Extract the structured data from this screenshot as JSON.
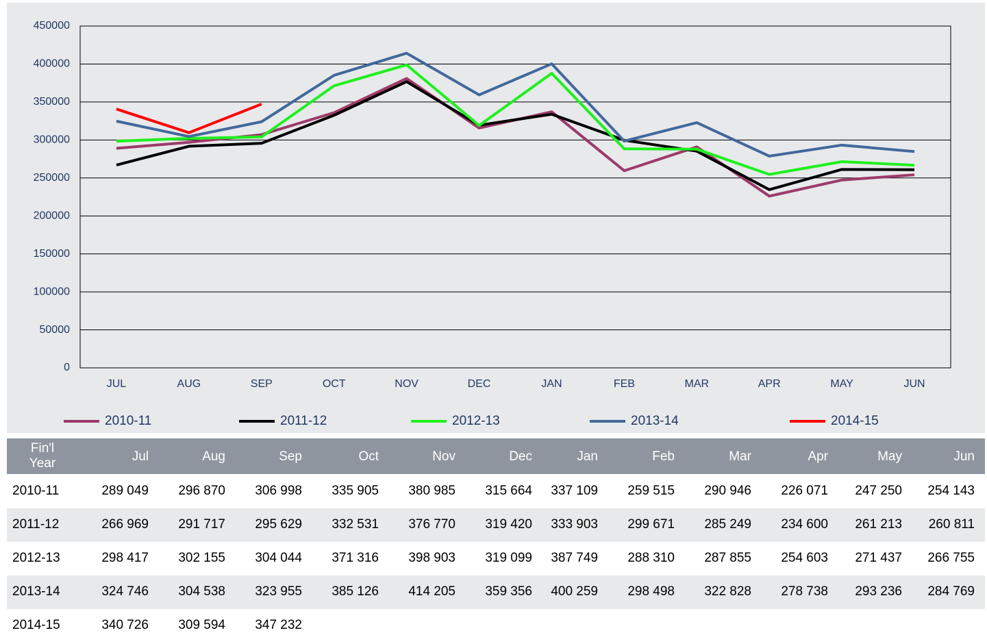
{
  "chart_data": {
    "type": "line",
    "categories": [
      "JUL",
      "AUG",
      "SEP",
      "OCT",
      "NOV",
      "DEC",
      "JAN",
      "FEB",
      "MAR",
      "APR",
      "MAY",
      "JUN"
    ],
    "ylim": [
      0,
      450000
    ],
    "yticks": [
      0,
      50000,
      100000,
      150000,
      200000,
      250000,
      300000,
      350000,
      400000,
      450000
    ],
    "grid": true,
    "legend": "bottom",
    "series": [
      {
        "name": "2010-11",
        "color": "#9c3b6a",
        "values": [
          289049,
          296870,
          306998,
          335905,
          380985,
          315664,
          337109,
          259515,
          290946,
          226071,
          247250,
          254143
        ],
        "value_labels": [
          "289 049",
          "296 870",
          "306 998",
          "335 905",
          "380 985",
          "315 664",
          "337 109",
          "259 515",
          "290 946",
          "226 071",
          "247 250",
          "254 143"
        ]
      },
      {
        "name": "2011-12",
        "color": "#000000",
        "values": [
          266969,
          291717,
          295629,
          332531,
          376770,
          319420,
          333903,
          299671,
          285249,
          234600,
          261213,
          260811
        ],
        "value_labels": [
          "266 969",
          "291 717",
          "295 629",
          "332 531",
          "376 770",
          "319 420",
          "333 903",
          "299 671",
          "285 249",
          "234 600",
          "261 213",
          "260 811"
        ]
      },
      {
        "name": "2012-13",
        "color": "#1ff01f",
        "values": [
          298417,
          302155,
          304044,
          371316,
          398903,
          319099,
          387749,
          288310,
          287855,
          254603,
          271437,
          266755
        ],
        "value_labels": [
          "298 417",
          "302 155",
          "304 044",
          "371 316",
          "398 903",
          "319 099",
          "387 749",
          "288 310",
          "287 855",
          "254 603",
          "271 437",
          "266 755"
        ]
      },
      {
        "name": "2013-14",
        "color": "#41699c",
        "values": [
          324746,
          304538,
          323955,
          385126,
          414205,
          359356,
          400259,
          298498,
          322828,
          278738,
          293236,
          284769
        ],
        "value_labels": [
          "324 746",
          "304 538",
          "323 955",
          "385 126",
          "414 205",
          "359 356",
          "400 259",
          "298 498",
          "322 828",
          "278 738",
          "293 236",
          "284 769"
        ]
      },
      {
        "name": "2014-15",
        "color": "#ff0000",
        "values": [
          340726,
          309594,
          347232,
          null,
          null,
          null,
          null,
          null,
          null,
          null,
          null,
          null
        ],
        "value_labels": [
          "340 726",
          "309 594",
          "347 232",
          null,
          null,
          null,
          null,
          null,
          null,
          null,
          null,
          null
        ]
      }
    ]
  },
  "table": {
    "header": [
      "Fin'l Year",
      "Jul",
      "Aug",
      "Sep",
      "Oct",
      "Nov",
      "Dec",
      "Jan",
      "Feb",
      "Mar",
      "Apr",
      "May",
      "Jun"
    ]
  }
}
